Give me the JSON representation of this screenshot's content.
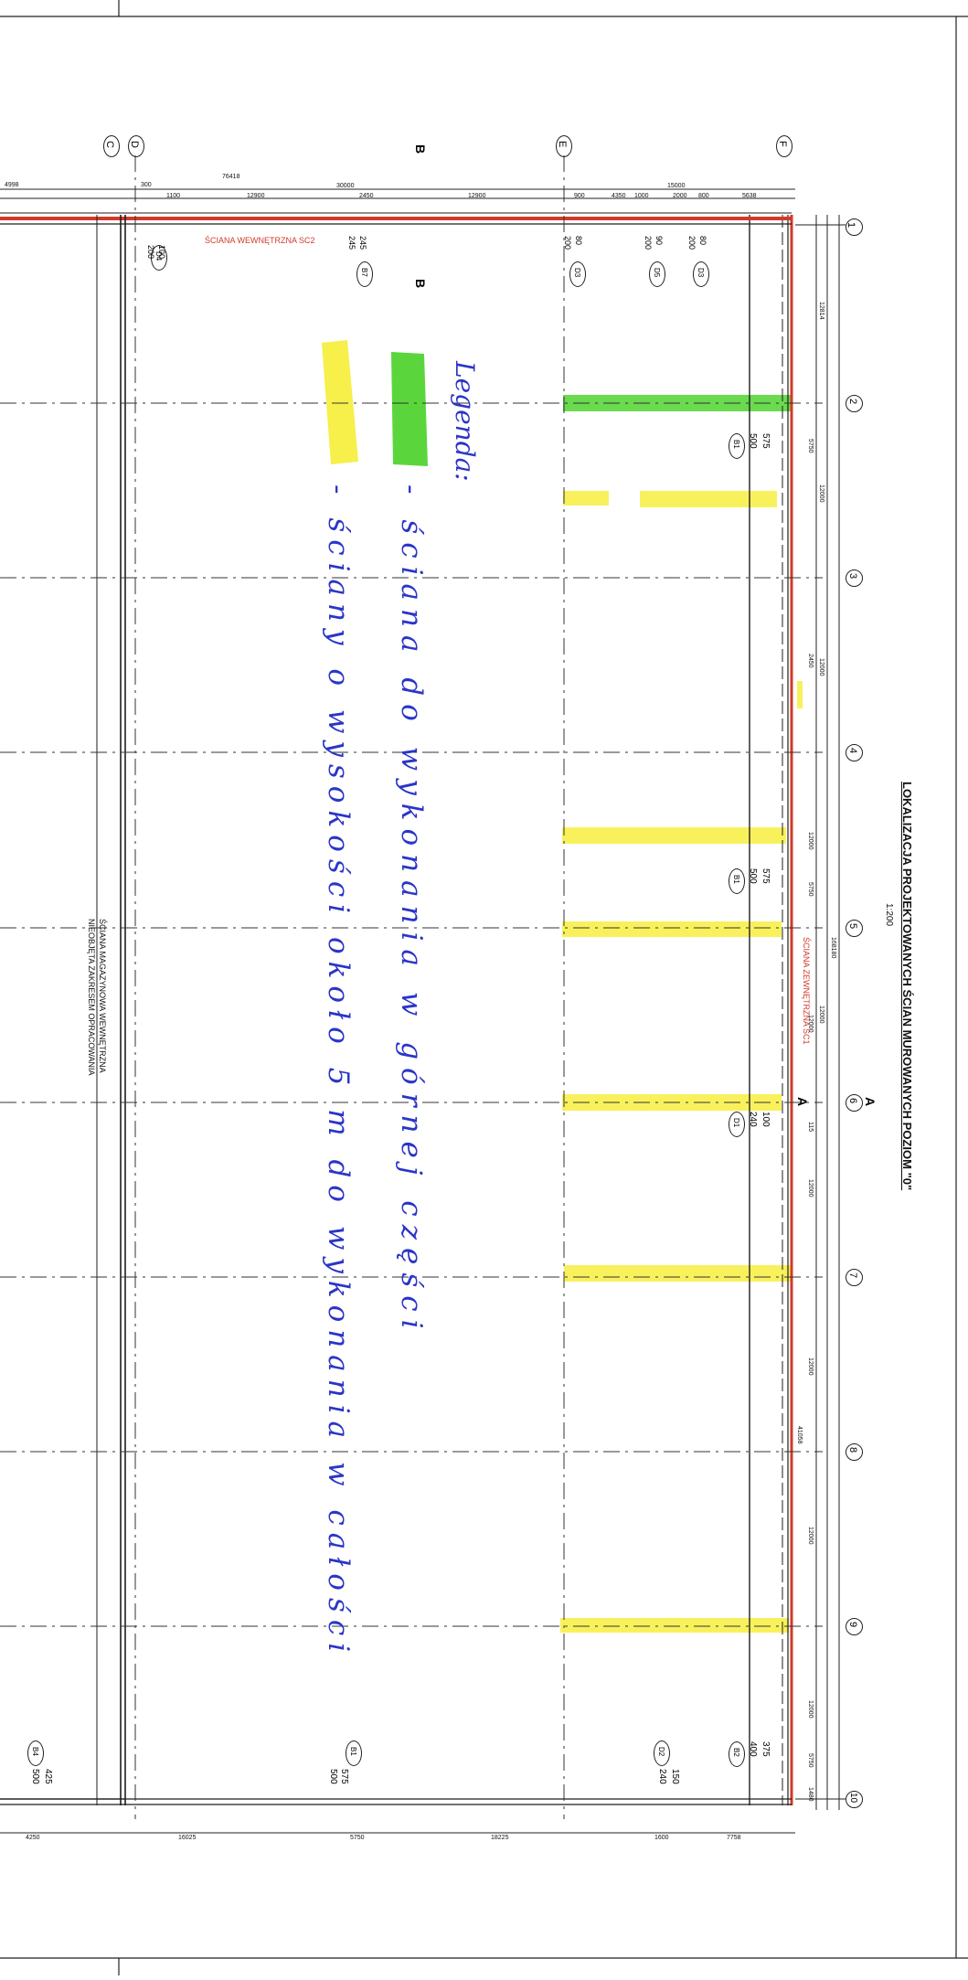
{
  "title": "LOKALIZACJA PROJEKTOWANYCH ŚCIAN MUROWANYCH POZIOM \"0\"",
  "scale": "1:200",
  "grid_axes": {
    "numbers": [
      "1",
      "2",
      "3",
      "4",
      "5",
      "6",
      "7",
      "8",
      "9",
      "10"
    ],
    "letters": [
      "C",
      "D",
      "E",
      "F"
    ]
  },
  "section_marks": {
    "a": "A",
    "b": "B"
  },
  "labels": {
    "internal_wall": "ŚCIANA WEWNĘTRZNA SC2",
    "external_wall": "ŚCIANA ZEWNĘTRZNA SC1",
    "note_line1": "ŚCIANA MAGAZYNOWA WEWNĘTRZNA",
    "note_line2": "NIEOBJĘTA ZAKRESEM OPRACOWANIA"
  },
  "dims_top": [
    "4998",
    "300",
    "1100",
    "12900",
    "76418",
    "30000",
    "2450",
    "12900",
    "900",
    "4350",
    "1000",
    "15000",
    "2000",
    "800",
    "5638"
  ],
  "dims_bottom": [
    "4250",
    "16025",
    "5750",
    "18225",
    "1600",
    "7758"
  ],
  "dims_right": [
    "12814",
    "5750",
    "12000",
    "2450",
    "12000",
    "12000",
    "5750",
    "12000",
    "12000",
    "115",
    "12000",
    "12000",
    "41058",
    "12000",
    "12000",
    "5750",
    "1480",
    "168180"
  ],
  "tags": [
    {
      "code": "D4",
      "top": "100",
      "bottom": "200"
    },
    {
      "code": "B7",
      "top": "245",
      "bottom": "245"
    },
    {
      "code": "D3",
      "top": "80",
      "bottom": "200"
    },
    {
      "code": "D5",
      "top": "90",
      "bottom": "200"
    },
    {
      "code": "D3",
      "top": "80",
      "bottom": "200"
    },
    {
      "code": "B1",
      "top": "575",
      "bottom": "500"
    },
    {
      "code": "B1",
      "top": "575",
      "bottom": "500"
    },
    {
      "code": "D1",
      "top": "100",
      "bottom": "240"
    },
    {
      "code": "B2",
      "top": "375",
      "bottom": "400"
    },
    {
      "code": "D2",
      "top": "150",
      "bottom": "240"
    },
    {
      "code": "B1",
      "top": "575",
      "bottom": "500"
    },
    {
      "code": "B4",
      "top": "425",
      "bottom": "500"
    }
  ],
  "legend": {
    "title": "Legenda:",
    "green_text": "- ściana do wykonania w górnej części",
    "yellow_text": "- ściany o wysokości około 5 m do wykonania w całości"
  },
  "colors": {
    "green": "#5ad63c",
    "yellow": "#f7ef4a",
    "handwriting": "#2a35c8",
    "red_wall": "#d23a2a",
    "drawing": "#1e1e1e"
  }
}
